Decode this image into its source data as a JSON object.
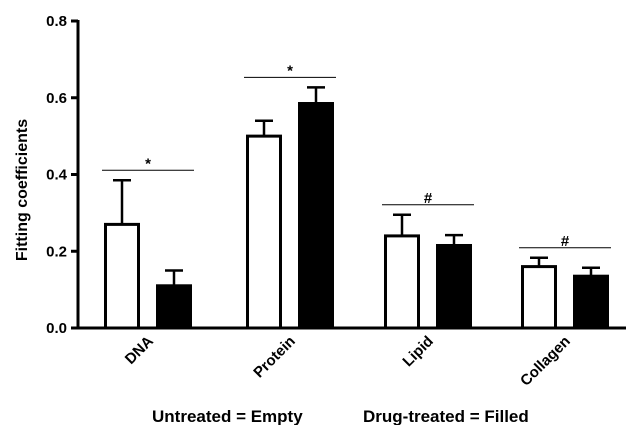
{
  "chart_data": {
    "type": "bar",
    "ylabel": "Fitting coefficients",
    "ylim": [
      0,
      0.8
    ],
    "yticks": [
      "0.0",
      "0.2",
      "0.4",
      "0.6",
      "0.8"
    ],
    "categories": [
      "DNA",
      "Protein",
      "Lipid",
      "Collagen"
    ],
    "series": [
      {
        "style": "empty",
        "values": [
          0.27,
          0.5,
          0.24,
          0.16
        ],
        "errors": [
          0.115,
          0.04,
          0.055,
          0.023
        ]
      },
      {
        "style": "filled",
        "values": [
          0.11,
          0.585,
          0.215,
          0.135
        ],
        "errors": [
          0.04,
          0.042,
          0.027,
          0.022
        ]
      }
    ],
    "significance": [
      "*",
      "*",
      "#",
      "#"
    ],
    "legend": {
      "empty_label": "Untreated = Empty",
      "filled_label": "Drug-treated = Filled"
    }
  }
}
